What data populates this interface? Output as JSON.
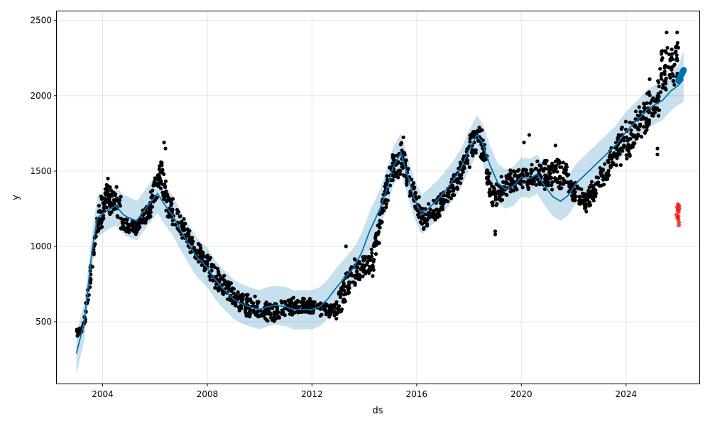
{
  "chart_data": {
    "type": "scatter",
    "title": "",
    "xlabel": "ds",
    "ylabel": "y",
    "xlim": [
      2002.25,
      2026.8
    ],
    "ylim": [
      90,
      2560
    ],
    "grid": true,
    "x_ticks": [
      {
        "value": 2004,
        "label": "2004"
      },
      {
        "value": 2008,
        "label": "2008"
      },
      {
        "value": 2012,
        "label": "2012"
      },
      {
        "value": 2016,
        "label": "2016"
      },
      {
        "value": 2020,
        "label": "2020"
      },
      {
        "value": 2024,
        "label": "2024"
      }
    ],
    "y_ticks": [
      {
        "value": 500,
        "label": "500"
      },
      {
        "value": 1000,
        "label": "1000"
      },
      {
        "value": 1500,
        "label": "1500"
      },
      {
        "value": 2000,
        "label": "2000"
      },
      {
        "value": 2500,
        "label": "2500"
      }
    ],
    "colors": {
      "observed": "#000000",
      "forecast": "#0072B2",
      "interval": "#0072B2",
      "anomaly": "#ff0000",
      "grid": "#e5e5e5"
    },
    "forecast": {
      "x": [
        2003.0,
        2003.3,
        2003.6,
        2003.8,
        2004.1,
        2004.5,
        2004.8,
        2005.0,
        2005.3,
        2005.6,
        2005.9,
        2006.1,
        2006.4,
        2006.7,
        2007.0,
        2007.3,
        2007.6,
        2008.0,
        2008.3,
        2008.6,
        2009.0,
        2009.3,
        2009.6,
        2010.0,
        2010.3,
        2010.6,
        2011.0,
        2011.3,
        2011.6,
        2012.0,
        2012.3,
        2012.6,
        2012.9,
        2013.3,
        2013.6,
        2013.9,
        2014.2,
        2014.6,
        2014.9,
        2015.1,
        2015.4,
        2015.6,
        2015.9,
        2016.2,
        2016.5,
        2016.8,
        2017.1,
        2017.4,
        2017.7,
        2018.0,
        2018.3,
        2018.5,
        2018.8,
        2019.1,
        2019.4,
        2019.7,
        2020.0,
        2020.3,
        2020.6,
        2020.9,
        2021.2,
        2021.5,
        2021.8,
        2022.1,
        2022.4,
        2022.7,
        2023.0,
        2023.3,
        2023.6,
        2023.9,
        2024.2,
        2024.5,
        2024.8,
        2025.1,
        2025.4,
        2025.7,
        2026.0,
        2026.2
      ],
      "y": [
        290,
        500,
        980,
        1190,
        1230,
        1270,
        1210,
        1190,
        1170,
        1240,
        1310,
        1350,
        1270,
        1200,
        1100,
        1010,
        930,
        860,
        780,
        720,
        650,
        620,
        600,
        580,
        600,
        610,
        600,
        580,
        580,
        580,
        600,
        650,
        720,
        800,
        860,
        960,
        1100,
        1250,
        1400,
        1530,
        1620,
        1500,
        1320,
        1210,
        1260,
        1310,
        1370,
        1440,
        1520,
        1640,
        1740,
        1690,
        1540,
        1420,
        1380,
        1400,
        1460,
        1450,
        1480,
        1400,
        1330,
        1300,
        1340,
        1420,
        1470,
        1520,
        1570,
        1620,
        1670,
        1740,
        1800,
        1850,
        1910,
        1940,
        1970,
        2030,
        2070,
        2110
      ]
    },
    "interval": {
      "x": [
        2003.0,
        2003.3,
        2003.6,
        2003.8,
        2004.1,
        2004.5,
        2004.8,
        2005.0,
        2005.3,
        2005.6,
        2005.9,
        2006.1,
        2006.4,
        2006.7,
        2007.0,
        2007.3,
        2007.6,
        2008.0,
        2008.3,
        2008.6,
        2009.0,
        2009.3,
        2009.6,
        2010.0,
        2010.3,
        2010.6,
        2011.0,
        2011.3,
        2011.6,
        2012.0,
        2012.3,
        2012.6,
        2012.9,
        2013.3,
        2013.6,
        2013.9,
        2014.2,
        2014.6,
        2014.9,
        2015.1,
        2015.4,
        2015.6,
        2015.9,
        2016.2,
        2016.5,
        2016.8,
        2017.1,
        2017.4,
        2017.7,
        2018.0,
        2018.3,
        2018.5,
        2018.8,
        2019.1,
        2019.4,
        2019.7,
        2020.0,
        2020.3,
        2020.6,
        2020.9,
        2021.2,
        2021.5,
        2021.8,
        2022.1,
        2022.4,
        2022.7,
        2023.0,
        2023.3,
        2023.6,
        2023.9,
        2024.2,
        2024.5,
        2024.8,
        2025.1,
        2025.4,
        2025.7,
        2026.0,
        2026.2
      ],
      "upper": [
        430,
        620,
        1090,
        1330,
        1360,
        1400,
        1340,
        1330,
        1300,
        1370,
        1440,
        1480,
        1400,
        1330,
        1230,
        1140,
        1060,
        990,
        910,
        850,
        780,
        750,
        730,
        710,
        730,
        740,
        730,
        710,
        710,
        710,
        730,
        780,
        850,
        930,
        990,
        1090,
        1230,
        1380,
        1530,
        1660,
        1750,
        1630,
        1450,
        1340,
        1390,
        1440,
        1500,
        1570,
        1650,
        1770,
        1870,
        1820,
        1670,
        1550,
        1510,
        1530,
        1590,
        1580,
        1610,
        1530,
        1460,
        1430,
        1470,
        1550,
        1600,
        1650,
        1700,
        1750,
        1800,
        1870,
        1930,
        1980,
        2040,
        2070,
        2100,
        2160,
        2200,
        2300
      ],
      "lower": [
        150,
        380,
        860,
        1060,
        1100,
        1140,
        1080,
        1060,
        1040,
        1110,
        1180,
        1220,
        1140,
        1070,
        970,
        880,
        800,
        730,
        650,
        590,
        520,
        490,
        470,
        450,
        470,
        480,
        470,
        450,
        450,
        450,
        470,
        520,
        590,
        670,
        730,
        830,
        970,
        1120,
        1270,
        1400,
        1490,
        1370,
        1190,
        1080,
        1130,
        1180,
        1240,
        1310,
        1390,
        1510,
        1610,
        1560,
        1410,
        1290,
        1250,
        1270,
        1330,
        1320,
        1350,
        1270,
        1200,
        1170,
        1210,
        1290,
        1340,
        1390,
        1440,
        1490,
        1540,
        1610,
        1670,
        1720,
        1780,
        1810,
        1840,
        1900,
        1940,
        1960
      ]
    },
    "observed_segments": [
      {
        "x0": 2003.0,
        "x1": 2003.3,
        "y0": 400,
        "y1": 500,
        "spread": 50,
        "n": 20
      },
      {
        "x0": 2003.3,
        "x1": 2003.8,
        "y0": 500,
        "y1": 1150,
        "spread": 70,
        "n": 40
      },
      {
        "x0": 2003.8,
        "x1": 2004.2,
        "y0": 1150,
        "y1": 1350,
        "spread": 130,
        "n": 50
      },
      {
        "x0": 2004.2,
        "x1": 2004.7,
        "y0": 1350,
        "y1": 1250,
        "spread": 130,
        "n": 50
      },
      {
        "x0": 2004.7,
        "x1": 2005.3,
        "y0": 1150,
        "y1": 1120,
        "spread": 60,
        "n": 50
      },
      {
        "x0": 2005.3,
        "x1": 2005.8,
        "y0": 1120,
        "y1": 1260,
        "spread": 70,
        "n": 45
      },
      {
        "x0": 2005.8,
        "x1": 2006.2,
        "y0": 1260,
        "y1": 1480,
        "spread": 100,
        "n": 40
      },
      {
        "x0": 2006.2,
        "x1": 2006.45,
        "y0": 1520,
        "y1": 1300,
        "spread": 140,
        "n": 30
      },
      {
        "x0": 2006.45,
        "x1": 2007.3,
        "y0": 1300,
        "y1": 1050,
        "spread": 100,
        "n": 70
      },
      {
        "x0": 2007.3,
        "x1": 2008.3,
        "y0": 1050,
        "y1": 800,
        "spread": 90,
        "n": 80
      },
      {
        "x0": 2008.3,
        "x1": 2009.3,
        "y0": 800,
        "y1": 620,
        "spread": 80,
        "n": 80
      },
      {
        "x0": 2009.3,
        "x1": 2010.5,
        "y0": 620,
        "y1": 560,
        "spread": 80,
        "n": 90
      },
      {
        "x0": 2010.5,
        "x1": 2011.7,
        "y0": 560,
        "y1": 610,
        "spread": 80,
        "n": 90
      },
      {
        "x0": 2011.7,
        "x1": 2012.9,
        "y0": 610,
        "y1": 570,
        "spread": 60,
        "n": 80
      },
      {
        "x0": 2012.9,
        "x1": 2013.6,
        "y0": 580,
        "y1": 830,
        "spread": 110,
        "n": 60
      },
      {
        "x0": 2013.6,
        "x1": 2014.3,
        "y0": 830,
        "y1": 900,
        "spread": 110,
        "n": 60
      },
      {
        "x0": 2014.3,
        "x1": 2015.0,
        "y0": 900,
        "y1": 1480,
        "spread": 120,
        "n": 70
      },
      {
        "x0": 2015.0,
        "x1": 2015.5,
        "y0": 1480,
        "y1": 1620,
        "spread": 120,
        "n": 50
      },
      {
        "x0": 2015.5,
        "x1": 2016.2,
        "y0": 1560,
        "y1": 1180,
        "spread": 110,
        "n": 60
      },
      {
        "x0": 2016.2,
        "x1": 2016.8,
        "y0": 1180,
        "y1": 1260,
        "spread": 80,
        "n": 50
      },
      {
        "x0": 2016.8,
        "x1": 2017.5,
        "y0": 1260,
        "y1": 1420,
        "spread": 90,
        "n": 60
      },
      {
        "x0": 2017.5,
        "x1": 2018.4,
        "y0": 1420,
        "y1": 1780,
        "spread": 110,
        "n": 70
      },
      {
        "x0": 2018.4,
        "x1": 2018.9,
        "y0": 1750,
        "y1": 1300,
        "spread": 130,
        "n": 50
      },
      {
        "x0": 2018.9,
        "x1": 2019.5,
        "y0": 1330,
        "y1": 1420,
        "spread": 90,
        "n": 50
      },
      {
        "x0": 2019.5,
        "x1": 2020.2,
        "y0": 1420,
        "y1": 1480,
        "spread": 90,
        "n": 60
      },
      {
        "x0": 2020.2,
        "x1": 2021.0,
        "y0": 1450,
        "y1": 1480,
        "spread": 110,
        "n": 70
      },
      {
        "x0": 2021.0,
        "x1": 2021.8,
        "y0": 1480,
        "y1": 1470,
        "spread": 110,
        "n": 70
      },
      {
        "x0": 2021.8,
        "x1": 2022.5,
        "y0": 1380,
        "y1": 1300,
        "spread": 80,
        "n": 60
      },
      {
        "x0": 2022.5,
        "x1": 2023.2,
        "y0": 1300,
        "y1": 1500,
        "spread": 100,
        "n": 60
      },
      {
        "x0": 2023.2,
        "x1": 2024.0,
        "y0": 1500,
        "y1": 1750,
        "spread": 110,
        "n": 70
      },
      {
        "x0": 2024.0,
        "x1": 2024.6,
        "y0": 1650,
        "y1": 1850,
        "spread": 130,
        "n": 60
      },
      {
        "x0": 2024.6,
        "x1": 2025.3,
        "y0": 1850,
        "y1": 2000,
        "spread": 140,
        "n": 60
      },
      {
        "x0": 2025.3,
        "x1": 2026.0,
        "y0": 2150,
        "y1": 2230,
        "spread": 170,
        "n": 60
      }
    ],
    "observed_extra": [
      {
        "x": 2006.35,
        "y": 1690
      },
      {
        "x": 2006.4,
        "y": 1650
      },
      {
        "x": 2013.3,
        "y": 1000
      },
      {
        "x": 2019.0,
        "y": 1080
      },
      {
        "x": 2019.0,
        "y": 1100
      },
      {
        "x": 2020.3,
        "y": 1740
      },
      {
        "x": 2020.1,
        "y": 1690
      },
      {
        "x": 2024.9,
        "y": 2110
      },
      {
        "x": 2025.55,
        "y": 2420
      },
      {
        "x": 2025.95,
        "y": 2420
      },
      {
        "x": 2025.2,
        "y": 1610
      },
      {
        "x": 2025.2,
        "y": 1650
      },
      {
        "x": 2023.8,
        "y": 1540
      },
      {
        "x": 2021.3,
        "y": 1670
      }
    ],
    "anomalies": [
      {
        "x": 2025.93,
        "y": 1210
      },
      {
        "x": 2025.95,
        "y": 1260
      },
      {
        "x": 2025.97,
        "y": 1240
      },
      {
        "x": 2025.98,
        "y": 1280
      },
      {
        "x": 2026.0,
        "y": 1200
      },
      {
        "x": 2026.0,
        "y": 1180
      },
      {
        "x": 2026.01,
        "y": 1230
      },
      {
        "x": 2026.02,
        "y": 1160
      },
      {
        "x": 2026.02,
        "y": 1140
      },
      {
        "x": 2026.03,
        "y": 1250
      },
      {
        "x": 2026.03,
        "y": 1270
      },
      {
        "x": 2025.96,
        "y": 1190
      }
    ]
  }
}
